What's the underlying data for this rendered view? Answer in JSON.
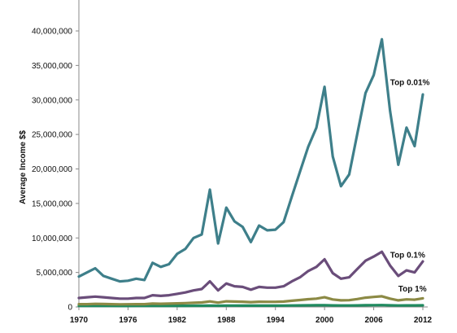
{
  "chart_data": {
    "type": "line",
    "title": "",
    "xlabel": "",
    "ylabel": "Average Income $$",
    "xlim": [
      1970,
      2012
    ],
    "ylim": [
      0,
      40000000
    ],
    "grid": false,
    "x_ticks": [
      1970,
      1976,
      1982,
      1988,
      1994,
      2000,
      2006,
      2012
    ],
    "x_tick_labels": [
      "1970",
      "1976",
      "1982",
      "1988",
      "1994",
      "2000",
      "2006",
      "2012"
    ],
    "y_ticks": [
      0,
      5000000,
      10000000,
      15000000,
      20000000,
      25000000,
      30000000,
      35000000,
      40000000
    ],
    "y_tick_labels": [
      "0",
      "5,000,000",
      "10,000,000",
      "15,000,000",
      "20,000,000",
      "25,000,000",
      "30,000,000",
      "35,000,000",
      "40,000,000"
    ],
    "x": [
      1970,
      1971,
      1972,
      1973,
      1974,
      1975,
      1976,
      1977,
      1978,
      1979,
      1980,
      1981,
      1982,
      1983,
      1984,
      1985,
      1986,
      1987,
      1988,
      1989,
      1990,
      1991,
      1992,
      1993,
      1994,
      1995,
      1996,
      1997,
      1998,
      1999,
      2000,
      2001,
      2002,
      2003,
      2004,
      2005,
      2006,
      2007,
      2008,
      2009,
      2010,
      2011,
      2012
    ],
    "series": [
      {
        "name": "Top 0.01%",
        "color": "#3e7f8a",
        "values": [
          4400000,
          5000000,
          5600000,
          4500000,
          4100000,
          3700000,
          3800000,
          4100000,
          3900000,
          6400000,
          5800000,
          6200000,
          7700000,
          8400000,
          10000000,
          10500000,
          17000000,
          9200000,
          14400000,
          12400000,
          11600000,
          9400000,
          11800000,
          11100000,
          11200000,
          12300000,
          16000000,
          19600000,
          23200000,
          26000000,
          31900000,
          21800000,
          17500000,
          19200000,
          25100000,
          31000000,
          33600000,
          38800000,
          28400000,
          20600000,
          26000000,
          23300000,
          30800000
        ]
      },
      {
        "name": "Top 0.1%",
        "color": "#6a4d7a",
        "values": [
          1300000,
          1400000,
          1500000,
          1400000,
          1300000,
          1200000,
          1200000,
          1300000,
          1300000,
          1700000,
          1600000,
          1700000,
          1900000,
          2100000,
          2400000,
          2600000,
          3700000,
          2400000,
          3400000,
          3000000,
          2900000,
          2500000,
          2900000,
          2800000,
          2800000,
          3000000,
          3700000,
          4300000,
          5200000,
          5800000,
          6900000,
          4900000,
          4100000,
          4300000,
          5500000,
          6700000,
          7300000,
          8000000,
          6000000,
          4500000,
          5300000,
          5000000,
          6600000
        ]
      },
      {
        "name": "Top 1%",
        "color": "#8c8a45",
        "values": [
          400000,
          400000,
          450000,
          420000,
          400000,
          380000,
          390000,
          400000,
          400000,
          480000,
          460000,
          480000,
          520000,
          560000,
          600000,
          650000,
          800000,
          620000,
          820000,
          780000,
          760000,
          700000,
          760000,
          740000,
          740000,
          780000,
          900000,
          1000000,
          1120000,
          1200000,
          1400000,
          1080000,
          950000,
          980000,
          1150000,
          1350000,
          1450000,
          1550000,
          1200000,
          950000,
          1100000,
          1050000,
          1250000
        ]
      },
      {
        "color": "#1f8a5f",
        "values": [
          150000,
          150000,
          155000,
          150000,
          148000,
          145000,
          145000,
          148000,
          148000,
          160000,
          158000,
          160000,
          165000,
          170000,
          175000,
          180000,
          200000,
          175000,
          200000,
          195000,
          192000,
          185000,
          192000,
          190000,
          190000,
          195000,
          210000,
          220000,
          235000,
          245000,
          260000,
          225000,
          210000,
          212000,
          230000,
          250000,
          260000,
          270000,
          235000,
          210000,
          225000,
          220000,
          240000
        ]
      }
    ],
    "annotations": [
      {
        "text": "Top 0.01%",
        "x": 2008,
        "y": 32500000
      },
      {
        "text": "Top 0.1%",
        "x": 2008,
        "y": 7500000
      },
      {
        "text": "Top 1%",
        "x": 2009,
        "y": 2600000
      }
    ]
  }
}
